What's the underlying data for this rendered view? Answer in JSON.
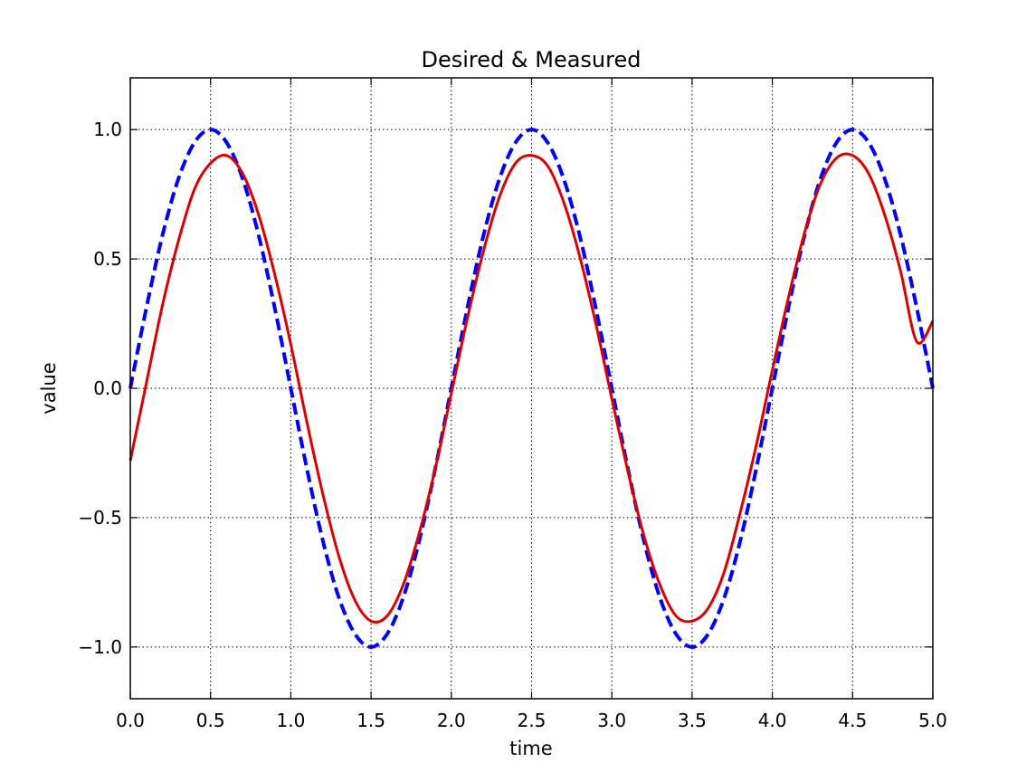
{
  "chart_data": {
    "type": "line",
    "title": "Desired & Measured",
    "xlabel": "time",
    "ylabel": "value",
    "xlim": [
      0.0,
      5.0
    ],
    "ylim": [
      -1.2,
      1.2
    ],
    "xticks": [
      0.0,
      0.5,
      1.0,
      1.5,
      2.0,
      2.5,
      3.0,
      3.5,
      4.0,
      4.5,
      5.0
    ],
    "xtick_labels": [
      "0.0",
      "0.5",
      "1.0",
      "1.5",
      "2.0",
      "2.5",
      "3.0",
      "3.5",
      "4.0",
      "4.5",
      "5.0"
    ],
    "yticks": [
      -1.0,
      -0.5,
      0.0,
      0.5,
      1.0
    ],
    "ytick_labels": [
      "−1.0",
      "−0.5",
      "0.0",
      "0.5",
      "1.0"
    ],
    "grid": true,
    "legend": "none",
    "series": [
      {
        "color": "#0000ff",
        "style": "dashed",
        "x": [
          0.0,
          0.1,
          0.2,
          0.3,
          0.4,
          0.5,
          0.6,
          0.7,
          0.8,
          0.9,
          1.0,
          1.1,
          1.2,
          1.3,
          1.4,
          1.5,
          1.6,
          1.7,
          1.8,
          1.9,
          2.0,
          2.1,
          2.2,
          2.3,
          2.4,
          2.5,
          2.6,
          2.7,
          2.8,
          2.9,
          3.0,
          3.1,
          3.2,
          3.3,
          3.4,
          3.5,
          3.6,
          3.7,
          3.8,
          3.9,
          4.0,
          4.1,
          4.2,
          4.3,
          4.4,
          4.5,
          4.6,
          4.7,
          4.8,
          4.9,
          5.0
        ],
        "y": [
          0.0,
          0.31,
          0.59,
          0.81,
          0.95,
          1.0,
          0.95,
          0.81,
          0.59,
          0.31,
          0.0,
          -0.31,
          -0.59,
          -0.81,
          -0.95,
          -1.0,
          -0.95,
          -0.81,
          -0.59,
          -0.31,
          0.0,
          0.31,
          0.59,
          0.81,
          0.95,
          1.0,
          0.95,
          0.81,
          0.59,
          0.31,
          0.0,
          -0.31,
          -0.59,
          -0.81,
          -0.95,
          -1.0,
          -0.95,
          -0.81,
          -0.59,
          -0.31,
          0.0,
          0.31,
          0.59,
          0.81,
          0.95,
          1.0,
          0.95,
          0.81,
          0.59,
          0.31,
          0.0
        ]
      },
      {
        "color": "#dd0000",
        "style": "solid",
        "x": [
          0.0,
          0.1,
          0.2,
          0.3,
          0.4,
          0.5,
          0.6,
          0.7,
          0.8,
          0.9,
          1.0,
          1.1,
          1.2,
          1.3,
          1.4,
          1.5,
          1.6,
          1.7,
          1.8,
          1.9,
          2.0,
          2.1,
          2.2,
          2.3,
          2.4,
          2.5,
          2.6,
          2.7,
          2.8,
          2.9,
          3.0,
          3.1,
          3.2,
          3.3,
          3.4,
          3.5,
          3.6,
          3.7,
          3.8,
          3.9,
          4.0,
          4.1,
          4.2,
          4.3,
          4.4,
          4.5,
          4.6,
          4.7,
          4.8,
          4.9,
          5.0
        ],
        "y": [
          -0.28,
          0.02,
          0.32,
          0.57,
          0.77,
          0.87,
          0.9,
          0.83,
          0.67,
          0.44,
          0.17,
          -0.13,
          -0.41,
          -0.65,
          -0.82,
          -0.9,
          -0.88,
          -0.76,
          -0.56,
          -0.31,
          -0.02,
          0.27,
          0.53,
          0.74,
          0.87,
          0.9,
          0.86,
          0.72,
          0.51,
          0.25,
          -0.04,
          -0.32,
          -0.57,
          -0.76,
          -0.88,
          -0.9,
          -0.85,
          -0.71,
          -0.48,
          -0.22,
          0.07,
          0.35,
          0.6,
          0.79,
          0.89,
          0.9,
          0.83,
          0.67,
          0.45,
          0.18,
          0.26
        ]
      }
    ]
  }
}
